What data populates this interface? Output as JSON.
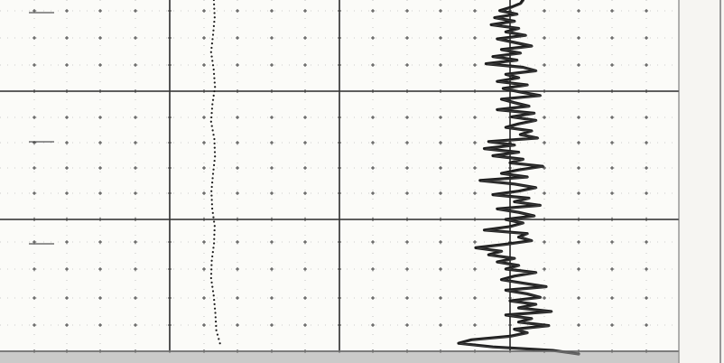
{
  "chart_data": {
    "type": "line",
    "title": "",
    "xlabel": "",
    "ylabel": "",
    "grid": true,
    "legend": "none",
    "background": "#fbfbf8",
    "ink": "#1c1c1c",
    "x_dot_series": {
      "name": "",
      "y": [
        0,
        0.05,
        0.1,
        0.15,
        0.2,
        0.25,
        0.3,
        0.35,
        0.4,
        0.45,
        0.5,
        0.55,
        0.6,
        0.65,
        0.7,
        0.75,
        0.8,
        0.85,
        0.9,
        0.95,
        1.0
      ],
      "x": [
        0.005,
        0.01,
        0.0,
        -0.012,
        0.004,
        0.012,
        -0.004,
        -0.012,
        0.008,
        0.012,
        0.0,
        -0.01,
        -0.005,
        0.01,
        0.006,
        -0.008,
        -0.012,
        0.004,
        0.014,
        0.02,
        0.05
      ]
    },
    "trace_series": {
      "name": "",
      "y": [
        0,
        0.01,
        0.02,
        0.03,
        0.04,
        0.05,
        0.06,
        0.07,
        0.08,
        0.09,
        0.1,
        0.11,
        0.12,
        0.13,
        0.14,
        0.15,
        0.16,
        0.17,
        0.18,
        0.19,
        0.2,
        0.21,
        0.22,
        0.23,
        0.24,
        0.25,
        0.26,
        0.27,
        0.28,
        0.29,
        0.3,
        0.31,
        0.32,
        0.33,
        0.34,
        0.35,
        0.36,
        0.37,
        0.38,
        0.39,
        0.4,
        0.41,
        0.42,
        0.43,
        0.44,
        0.45,
        0.46,
        0.47,
        0.48,
        0.49,
        0.5,
        0.51,
        0.52,
        0.53,
        0.54,
        0.55,
        0.56,
        0.57,
        0.58,
        0.59,
        0.6,
        0.61,
        0.62,
        0.63,
        0.64,
        0.65,
        0.66,
        0.67,
        0.68,
        0.69,
        0.7,
        0.71,
        0.72,
        0.73,
        0.74,
        0.75,
        0.76,
        0.77,
        0.78,
        0.79,
        0.8,
        0.81,
        0.82,
        0.83,
        0.84,
        0.85,
        0.86,
        0.87,
        0.88,
        0.89,
        0.9,
        0.91,
        0.92,
        0.93,
        0.94,
        0.95,
        0.96,
        0.97,
        0.98,
        0.99,
        1.0
      ],
      "x": [
        0.15,
        0.12,
        0.02,
        -0.12,
        0.08,
        -0.18,
        0.05,
        -0.22,
        0.1,
        -0.05,
        0.18,
        -0.15,
        0.05,
        0.25,
        -0.1,
        0.12,
        -0.2,
        0.08,
        -0.28,
        0.15,
        0.3,
        -0.05,
        0.1,
        -0.15,
        0.2,
        -0.08,
        0.12,
        0.35,
        -0.1,
        0.05,
        0.22,
        -0.15,
        0.28,
        0.02,
        0.3,
        0.1,
        -0.05,
        0.25,
        0.12,
        0.32,
        -0.25,
        0.05,
        -0.3,
        0.1,
        -0.2,
        0.15,
        0.0,
        0.38,
        0.1,
        -0.1,
        0.2,
        -0.35,
        0.05,
        0.3,
        0.1,
        -0.2,
        0.22,
        0.05,
        0.35,
        -0.15,
        0.1,
        0.28,
        -0.05,
        0.15,
        0.0,
        -0.3,
        0.2,
        0.1,
        0.25,
        -0.05,
        -0.4,
        -0.1,
        -0.25,
        0.05,
        -0.15,
        0.1,
        -0.05,
        0.3,
        0.05,
        -0.1,
        0.15,
        0.42,
        -0.05,
        0.2,
        0.35,
        0.0,
        0.3,
        0.1,
        0.48,
        -0.05,
        0.25,
        0.1,
        0.45,
        0.05,
        0.2,
        0.0,
        -0.45,
        -0.6,
        -0.2,
        0.5,
        0.8
      ]
    }
  }
}
